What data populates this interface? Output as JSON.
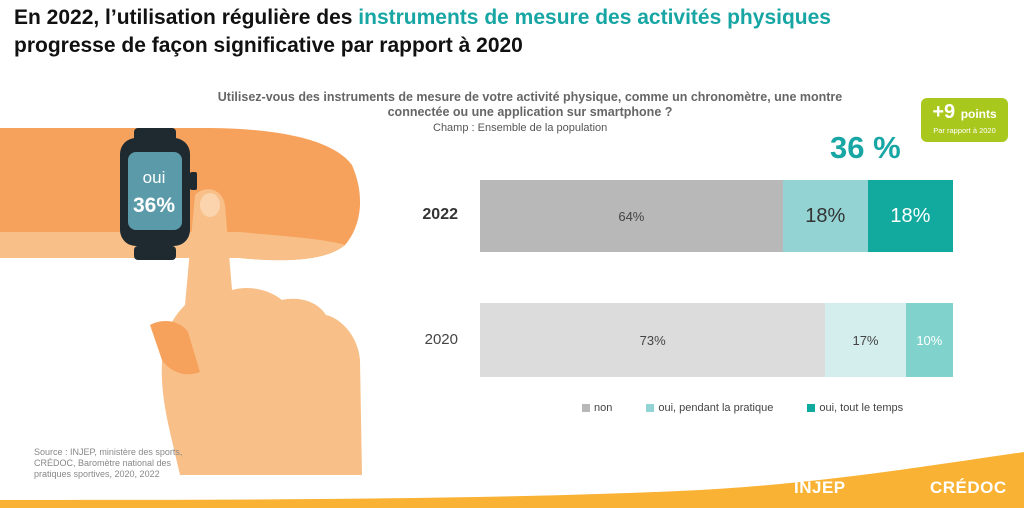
{
  "title": {
    "part1": "En 2022, l’utilisation régulière des ",
    "highlight": "instruments de mesure des activités physiques",
    "part2": "progresse de façon significative par rapport à 2020"
  },
  "question": "Utilisez-vous des instruments de mesure de votre activité physique, comme un chronomètre, une montre connectée ou une application sur smartphone ?",
  "champ": "Champ : Ensemble de la population",
  "badge": {
    "value": "+9",
    "unit": "points",
    "sub": "Par rapport à 2020"
  },
  "highlight_value": "36 %",
  "watch": {
    "label": "oui",
    "value": "36%"
  },
  "source": "Source : INJEP, ministère des sports, CRÉDOC, Baromètre national des pratiques sportives, 2020, 2022",
  "logos": {
    "left": "INJEP",
    "right": "CRÉDOC"
  },
  "colors": {
    "accent": "#17a6a3",
    "badge": "#a8c81e",
    "orange": "#f9b233",
    "non_2022": "#b8b8b8",
    "pendant_2022": "#93d3d3",
    "tout_2022": "#12a99f",
    "non_2020": "#dcdcdc",
    "pendant_2020": "#d4eeee",
    "tout_2020": "#7fd3cc"
  },
  "chart_data": {
    "type": "bar",
    "orientation": "horizontal",
    "stacked": true,
    "categories": [
      "2022",
      "2020"
    ],
    "series": [
      {
        "name": "non",
        "values": [
          64,
          73
        ],
        "labels": [
          "64%",
          "73%"
        ]
      },
      {
        "name": "oui, pendant la pratique",
        "values": [
          18,
          17
        ],
        "labels": [
          "18%",
          "17%"
        ]
      },
      {
        "name": "oui, tout le temps",
        "values": [
          18,
          10
        ],
        "labels": [
          "18%",
          "10%"
        ]
      }
    ],
    "xlim": [
      0,
      100
    ],
    "legend": "bottom"
  }
}
